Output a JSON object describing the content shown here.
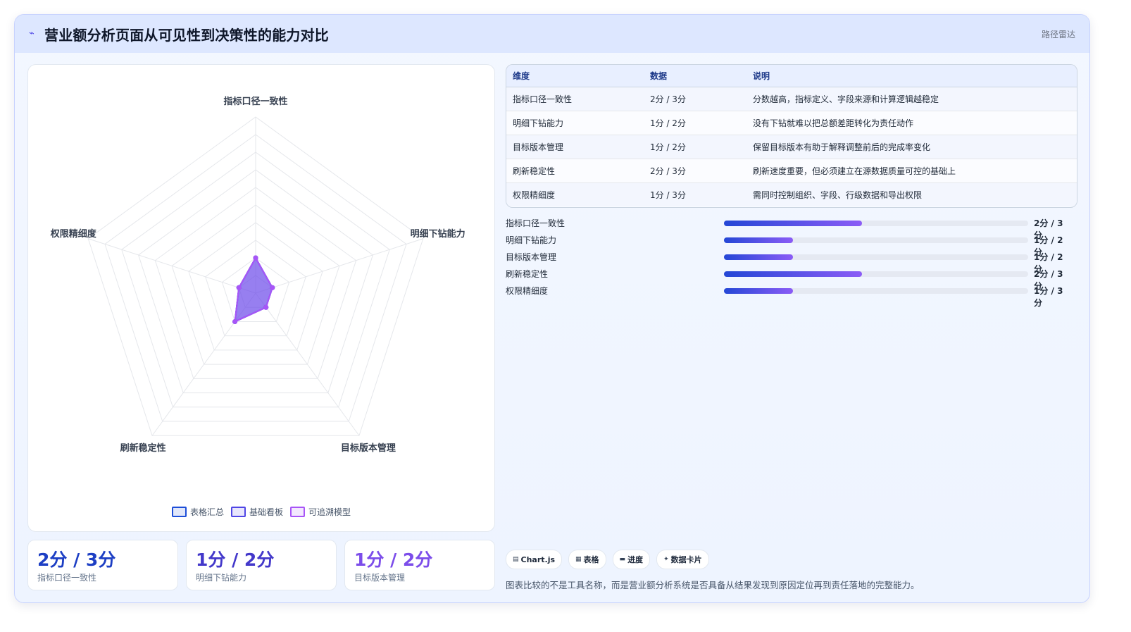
{
  "header": {
    "icon": "line-chart-icon",
    "title": "营业额分析页面从可见性到决策性的能力对比",
    "route_label": "路径雷达"
  },
  "chart_data": {
    "type": "radar",
    "axes": [
      "指标口径一致性",
      "明细下钻能力",
      "目标版本管理",
      "刷新稳定性",
      "权限精细度"
    ],
    "series": [
      {
        "name": "表格汇总",
        "color": "#1d4ed8",
        "values": [
          2,
          1,
          1,
          2,
          1
        ]
      },
      {
        "name": "基础看板",
        "color": "#4f46e5",
        "values": [
          2,
          1,
          1,
          2,
          1
        ]
      },
      {
        "name": "可追溯模型",
        "color": "#a855f7",
        "values": [
          2,
          1,
          1,
          2,
          1
        ]
      }
    ],
    "scale_max": 10,
    "grid_levels": 10
  },
  "stats": [
    {
      "value": "2分 / 3分",
      "label": "指标口径一致性",
      "color": "#1d3fc4"
    },
    {
      "value": "1分 / 2分",
      "label": "明细下钻能力",
      "color": "#4338ca"
    },
    {
      "value": "1分 / 2分",
      "label": "目标版本管理",
      "color": "#7c4dea"
    }
  ],
  "table": {
    "headers": [
      "维度",
      "数据",
      "说明"
    ],
    "rows": [
      [
        "指标口径一致性",
        "2分 / 3分",
        "分数越高，指标定义、字段来源和计算逻辑越稳定"
      ],
      [
        "明细下钻能力",
        "1分 / 2分",
        "没有下钻就难以把总额差距转化为责任动作"
      ],
      [
        "目标版本管理",
        "1分 / 2分",
        "保留目标版本有助于解释调整前后的完成率变化"
      ],
      [
        "刷新稳定性",
        "2分 / 3分",
        "刷新速度重要，但必须建立在源数据质量可控的基础上"
      ],
      [
        "权限精细度",
        "1分 / 3分",
        "需同时控制组织、字段、行级数据和导出权限"
      ]
    ]
  },
  "progress": [
    {
      "label": "指标口径一致性",
      "value_text": "2分 / 3分",
      "fraction": 0.4545
    },
    {
      "label": "明细下钻能力",
      "value_text": "1分 / 2分",
      "fraction": 0.2273
    },
    {
      "label": "目标版本管理",
      "value_text": "1分 / 2分",
      "fraction": 0.2273
    },
    {
      "label": "刷新稳定性",
      "value_text": "2分 / 3分",
      "fraction": 0.4545
    },
    {
      "label": "权限精细度",
      "value_text": "1分 / 3分",
      "fraction": 0.2273
    }
  ],
  "chips": [
    {
      "icon": "chart-icon",
      "label": "Chart.js"
    },
    {
      "icon": "table-icon",
      "label": "表格"
    },
    {
      "icon": "progress-icon",
      "label": "进度"
    },
    {
      "icon": "sparkle-icon",
      "label": "数据卡片"
    }
  ],
  "footer_note": "图表比较的不是工具名称，而是营业额分析系统是否具备从结果发现到原因定位再到责任落地的完整能力。"
}
